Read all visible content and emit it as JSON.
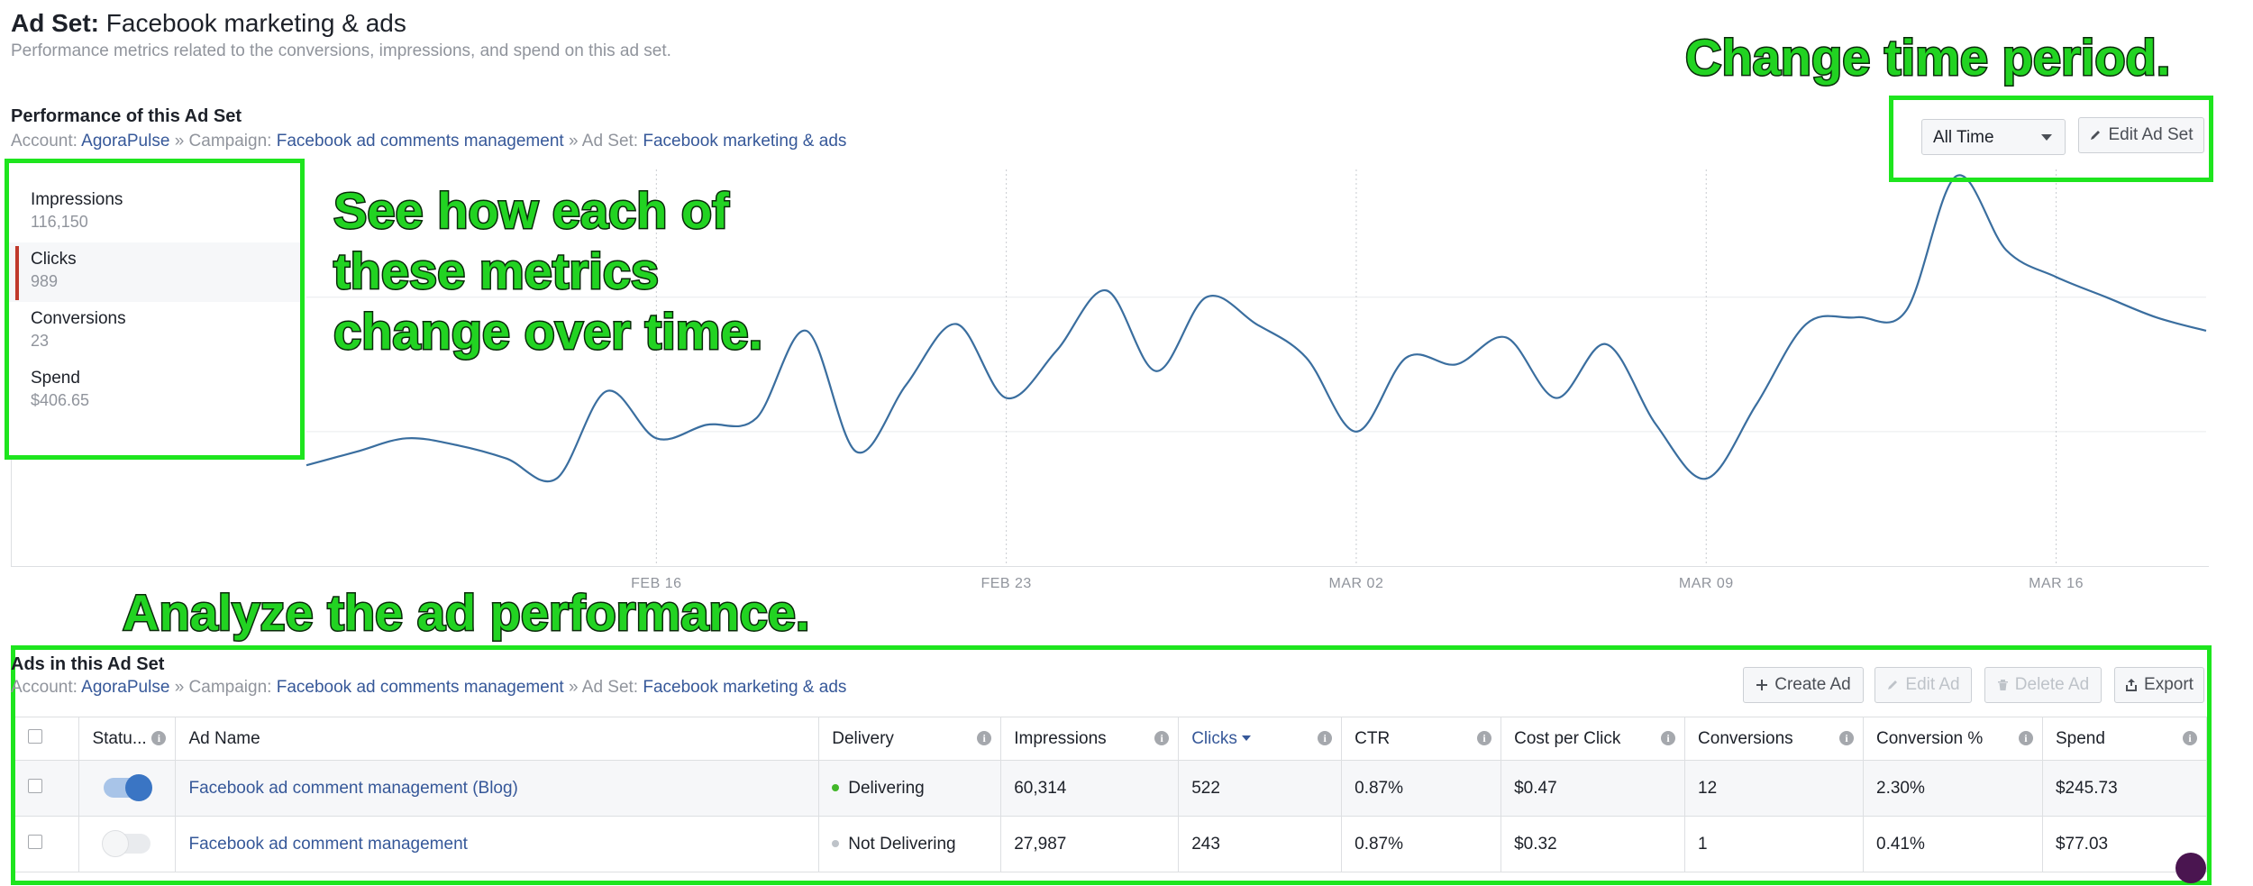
{
  "header": {
    "title_prefix": "Ad Set:",
    "title_name": "Facebook marketing & ads",
    "subtitle": "Performance metrics related to the conversions, impressions, and spend on this ad set."
  },
  "performance": {
    "title": "Performance of this Ad Set",
    "breadcrumb": {
      "account_label": "Account:",
      "account": "AgoraPulse",
      "campaign_label": "Campaign:",
      "campaign": "Facebook ad comments management",
      "adset_label": "Ad Set:",
      "adset": "Facebook marketing & ads",
      "separator": "»"
    },
    "time_select": "All Time",
    "edit_adset_label": "Edit Ad Set",
    "metrics": [
      {
        "label": "Impressions",
        "value": "116,150",
        "active": false
      },
      {
        "label": "Clicks",
        "value": "989",
        "active": true
      },
      {
        "label": "Conversions",
        "value": "23",
        "active": false
      },
      {
        "label": "Spend",
        "value": "$406.65",
        "active": false
      }
    ]
  },
  "chart_data": {
    "type": "line",
    "x": [
      "FEB 09",
      "FEB 10",
      "FEB 11",
      "FEB 12",
      "FEB 13",
      "FEB 14",
      "FEB 15",
      "FEB 16",
      "FEB 17",
      "FEB 18",
      "FEB 19",
      "FEB 20",
      "FEB 21",
      "FEB 22",
      "FEB 23",
      "FEB 24",
      "FEB 25",
      "FEB 26",
      "FEB 27",
      "FEB 28",
      "MAR 01",
      "MAR 02",
      "MAR 03",
      "MAR 04",
      "MAR 05",
      "MAR 06",
      "MAR 07",
      "MAR 08",
      "MAR 09",
      "MAR 10",
      "MAR 11",
      "MAR 12",
      "MAR 13",
      "MAR 14",
      "MAR 15",
      "MAR 16",
      "MAR 17",
      "MAR 18",
      "MAR 19"
    ],
    "series": [
      {
        "values": [
          15,
          17,
          19,
          18,
          16,
          13,
          26,
          19,
          21,
          22,
          35,
          17,
          27,
          36,
          25,
          32,
          41,
          29,
          40,
          36,
          31,
          20,
          31,
          30,
          34,
          25,
          33,
          21,
          13,
          24,
          36,
          37,
          38,
          58,
          47,
          43,
          40,
          37,
          35
        ]
      }
    ],
    "x_ticks": [
      "FEB 16",
      "FEB 23",
      "MAR 02",
      "MAR 09",
      "MAR 16"
    ],
    "y_ticks": [
      20,
      40
    ],
    "ylim": [
      0,
      59
    ],
    "grid": true,
    "color": "#3a6e9f"
  },
  "annotations": {
    "metrics_note": [
      "See how each of",
      "these metrics",
      "change over time."
    ],
    "time_note": "Change time period.",
    "ads_note": "Analyze the ad performance."
  },
  "ads": {
    "title": "Ads in this Ad Set",
    "buttons": {
      "create": "Create Ad",
      "edit": "Edit Ad",
      "delete": "Delete Ad",
      "export": "Export"
    },
    "columns": [
      "Statu...",
      "Ad Name",
      "Delivery",
      "Impressions",
      "Clicks",
      "CTR",
      "Cost per Click",
      "Conversions",
      "Conversion %",
      "Spend"
    ],
    "rows": [
      {
        "status_on": true,
        "name": "Facebook ad comment management (Blog)",
        "delivery": "Delivering",
        "impressions": "60,314",
        "clicks": "522",
        "ctr": "0.87%",
        "cpc": "$0.47",
        "conversions": "12",
        "conv_pct": "2.30%",
        "spend": "$245.73"
      },
      {
        "status_on": false,
        "name": "Facebook ad comment management",
        "delivery": "Not Delivering",
        "impressions": "27,987",
        "clicks": "243",
        "ctr": "0.87%",
        "cpc": "$0.32",
        "conversions": "1",
        "conv_pct": "0.41%",
        "spend": "$77.03"
      }
    ],
    "colors": {
      "delivering": "#42b72a",
      "not_delivering": "#bec3c9"
    }
  }
}
